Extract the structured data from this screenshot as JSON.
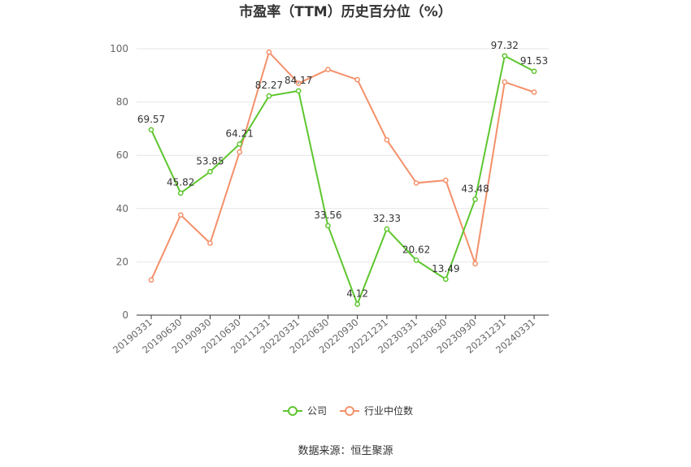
{
  "title": "市盈率（TTM）历史百分位（%）",
  "source": "数据来源：恒生聚源",
  "chart_data": {
    "type": "line",
    "title": "市盈率（TTM）历史百分位（%）",
    "x": [
      "20190331",
      "20190630",
      "20190930",
      "20210630",
      "20211231",
      "20220331",
      "20220630",
      "20220930",
      "20221231",
      "20230331",
      "20230630",
      "20230930",
      "20231231",
      "20240331"
    ],
    "ylim": [
      0,
      100
    ],
    "yticks": [
      0,
      20,
      40,
      60,
      80,
      100
    ],
    "grid": true,
    "legend_position": "bottom",
    "series": [
      {
        "name": "公司",
        "color": "#5ec62e",
        "values": [
          69.57,
          45.82,
          53.85,
          64.21,
          82.27,
          84.17,
          33.56,
          4.12,
          32.33,
          20.62,
          13.49,
          43.48,
          97.32,
          91.53
        ],
        "show_labels": true
      },
      {
        "name": "行业中位数",
        "color": "#f4906a",
        "values": [
          13.2,
          37.6,
          27.0,
          61.2,
          98.7,
          87.0,
          92.2,
          88.4,
          65.8,
          49.6,
          50.6,
          19.3,
          87.5,
          83.7
        ],
        "show_labels": false
      }
    ]
  }
}
